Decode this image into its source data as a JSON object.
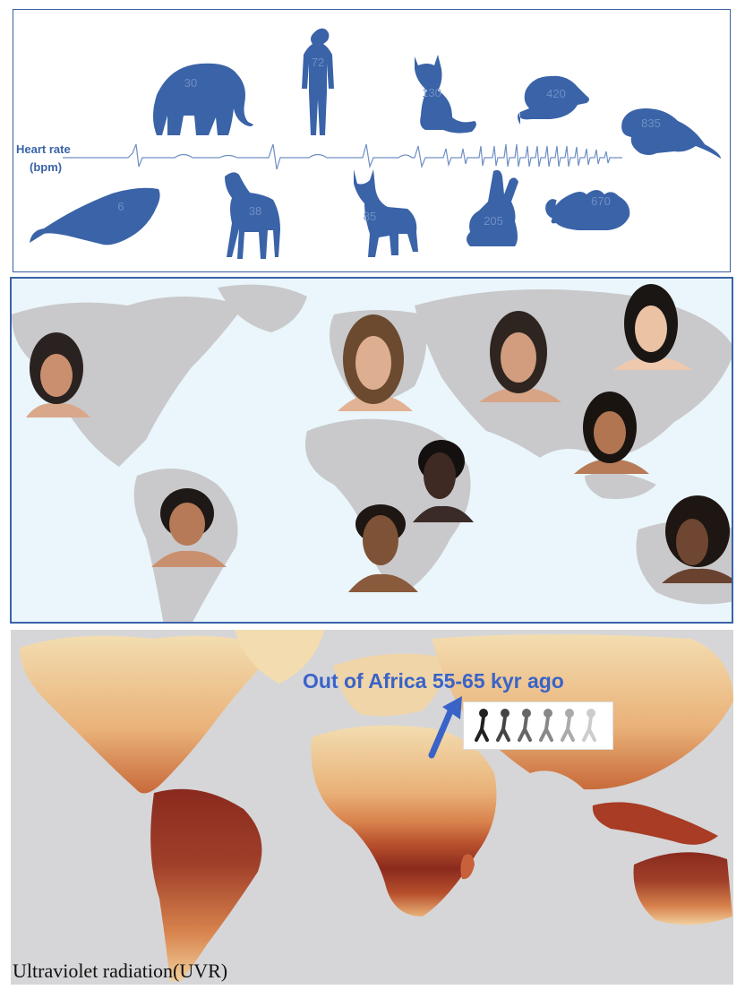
{
  "heart_panel": {
    "axis_label_line1": "Heart rate",
    "axis_label_line2": "(bpm)",
    "animals_top": [
      {
        "icon": "elephant-icon",
        "bpm": "30"
      },
      {
        "icon": "human-icon",
        "bpm": "72"
      },
      {
        "icon": "cat-icon",
        "bpm": "130"
      },
      {
        "icon": "rat-icon",
        "bpm": "420"
      },
      {
        "icon": "shrew-icon",
        "bpm": "835"
      }
    ],
    "animals_bottom": [
      {
        "icon": "whale-icon",
        "bpm": "6"
      },
      {
        "icon": "horse-icon",
        "bpm": "38"
      },
      {
        "icon": "dog-icon",
        "bpm": "85"
      },
      {
        "icon": "rabbit-icon",
        "bpm": "205"
      },
      {
        "icon": "mouse-icon",
        "bpm": "670"
      }
    ],
    "color": "#3a63a8"
  },
  "people_panel": {
    "portraits": [
      "americas-north-portrait",
      "americas-south-portrait",
      "europe-portrait",
      "middle-east-portrait",
      "east-asia-portrait",
      "southeast-asia-portrait",
      "east-africa-portrait",
      "south-africa-portrait",
      "oceania-portrait"
    ],
    "map_color": "#c9c9cb",
    "ocean_color": "#eaf6fb"
  },
  "uvr_panel": {
    "title": "Ultraviolet radiation(UVR)",
    "migration_label": "Out of Africa 55-65 kyr ago",
    "arrow_color": "#3a63c8",
    "gradient_colors": [
      "#f3ddb0",
      "#e9b178",
      "#d9844e",
      "#b8502c",
      "#8a2a1e"
    ]
  }
}
